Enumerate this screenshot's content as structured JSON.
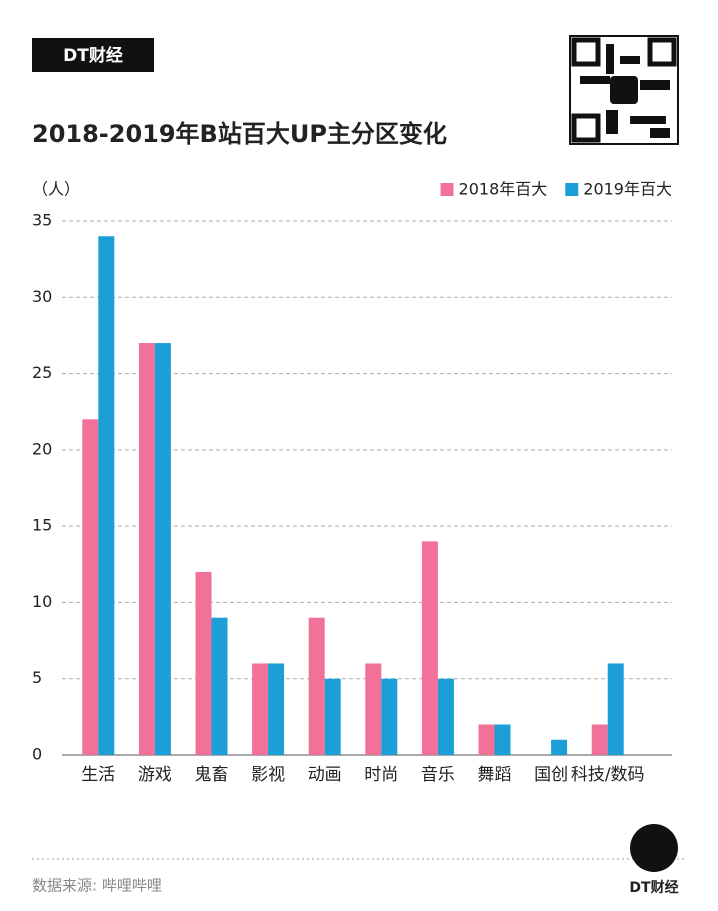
{
  "brand": "DT财经",
  "source": "数据来源: 哔哩哔哩",
  "chart_data": {
    "type": "bar",
    "title": "2018-2019年B站百大UP主分区变化",
    "y_label": "（人）",
    "categories": [
      "生活",
      "游戏",
      "鬼畜",
      "影视",
      "动画",
      "时尚",
      "音乐",
      "舞蹈",
      "国创",
      "科技/数码"
    ],
    "series": [
      {
        "name": "2018年百大",
        "color": "#f27199",
        "values": [
          22,
          27,
          12,
          6,
          9,
          6,
          14,
          2,
          0,
          2
        ]
      },
      {
        "name": "2019年百大",
        "color": "#1b9fd6",
        "values": [
          34,
          27,
          9,
          6,
          5,
          5,
          5,
          2,
          1,
          6
        ]
      }
    ],
    "ylim": [
      0,
      35
    ],
    "yticks": [
      0,
      5,
      10,
      15,
      20,
      25,
      30,
      35
    ],
    "grid": true,
    "legend": "top-right"
  }
}
